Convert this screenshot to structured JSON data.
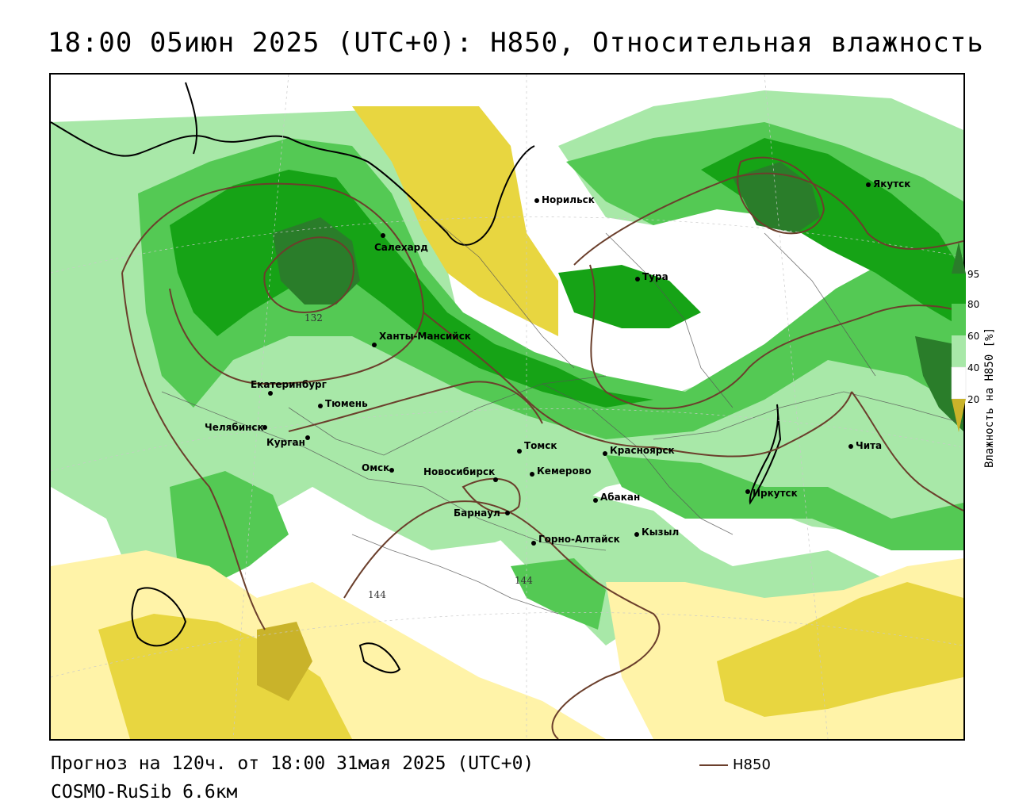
{
  "title": "18:00 05июн 2025 (UTC+0): H850, Относительная влажность",
  "footer": {
    "forecast": "Прогноз на 120ч. от 18:00 31мая 2025 (UTC+0)",
    "model": "COSMO-RuSib 6.6км",
    "line_legend_label": "H850"
  },
  "legend": {
    "title": "Влажность на H850 [%]",
    "ticks": [
      "95",
      "80",
      "60",
      "40",
      "20"
    ],
    "colors": {
      "c95": "#2a7d2a",
      "c80": "#16a316",
      "c60": "#54c954",
      "c50": "#a8e8a8",
      "c40": "#ffffff",
      "c30": "#fff3a8",
      "c20": "#e8d640",
      "c10": "#c9b32a"
    }
  },
  "cities": [
    {
      "name": "Норильск"
    },
    {
      "name": "Якутск"
    },
    {
      "name": "Салехард"
    },
    {
      "name": "Тура"
    },
    {
      "name": "Ханты-Мансийск"
    },
    {
      "name": "Екатеринбург"
    },
    {
      "name": "Тюмень"
    },
    {
      "name": "Челябинск"
    },
    {
      "name": "Курган"
    },
    {
      "name": "Омск"
    },
    {
      "name": "Новосибирск"
    },
    {
      "name": "Томск"
    },
    {
      "name": "Кемерово"
    },
    {
      "name": "Красноярск"
    },
    {
      "name": "Барнаул"
    },
    {
      "name": "Абакан"
    },
    {
      "name": "Горно-Алтайск"
    },
    {
      "name": "Кызыл"
    },
    {
      "name": "Иркутск"
    },
    {
      "name": "Чита"
    }
  ],
  "isolines": [
    "132",
    "144",
    "144"
  ]
}
